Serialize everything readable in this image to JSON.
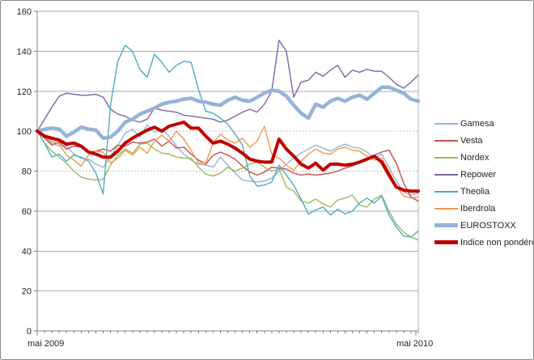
{
  "figure": {
    "background": "#FFFFFF",
    "border_color": "#8A8A8A",
    "text_color": "#1F1F1F",
    "grid_color": "#A9A9A9",
    "grid_color_light": "#C2C2C2",
    "axis_color": "#808080"
  },
  "chart_data": {
    "type": "line",
    "title": "",
    "subtitle": "",
    "x_axis": {
      "start_label": "mai 2009",
      "end_label": "mai 2010",
      "points": 53,
      "tick_interval": "weekly"
    },
    "y_axis": {
      "min": 0,
      "max": 160,
      "step": 20,
      "tick_labels": [
        "0",
        "20",
        "40",
        "60",
        "80",
        "100",
        "120",
        "140",
        "160"
      ]
    },
    "grid": true,
    "legend_position": "right",
    "series": [
      {
        "name": "Gamesa",
        "color": "#95B3D7",
        "width": 1.4,
        "values": [
          100,
          96.5,
          94,
          92.5,
          92.5,
          88.5,
          86.5,
          86,
          83.5,
          82,
          87,
          93,
          99,
          101,
          97,
          103,
          99.5,
          101,
          97.5,
          92.5,
          88.5,
          85.5,
          83.5,
          83,
          82,
          87,
          83,
          79,
          75.5,
          75,
          74.5,
          75,
          76.5,
          80,
          83.5,
          86.5,
          89,
          91,
          93,
          91.5,
          90,
          92,
          93.5,
          92,
          91.5,
          89.5,
          86.5,
          88.5,
          82,
          75,
          69.5,
          68,
          69
        ]
      },
      {
        "name": "Vesta",
        "color": "#C0504D",
        "width": 1.4,
        "values": [
          100,
          96.5,
          93,
          94.5,
          91,
          92.5,
          92,
          89.5,
          90,
          91,
          90,
          93,
          92.5,
          94.5,
          94,
          94.5,
          96,
          92.5,
          95,
          91.5,
          92,
          88.5,
          85.5,
          83.5,
          88,
          89.5,
          88,
          86,
          82.5,
          79.5,
          78,
          79.5,
          82,
          81.5,
          81,
          79,
          78,
          78.5,
          78,
          78.5,
          79,
          80,
          81.5,
          82.5,
          84.5,
          86.5,
          88,
          89.5,
          90.5,
          84,
          74,
          67,
          65
        ]
      },
      {
        "name": "Nordex",
        "color": "#9BBB59",
        "width": 1.4,
        "values": [
          100,
          94,
          90,
          87,
          84,
          80,
          77,
          76,
          75.5,
          76,
          83,
          88,
          91,
          89,
          93.5,
          94,
          91,
          89,
          88.5,
          87,
          86.5,
          86.5,
          82,
          78.5,
          77.5,
          79,
          82,
          80,
          81.5,
          83.5,
          84.5,
          82,
          80,
          81,
          72,
          70,
          65,
          64,
          66,
          63.5,
          62,
          65.5,
          66.5,
          68,
          63,
          62,
          66,
          68,
          60,
          53.5,
          49.5,
          47,
          45.5
        ]
      },
      {
        "name": "Repower",
        "color": "#8064A2",
        "width": 1.4,
        "values": [
          100,
          106,
          112,
          117.5,
          119,
          118.5,
          118,
          118,
          118.5,
          117,
          111,
          108.5,
          107.5,
          105.5,
          104.5,
          106,
          111.5,
          110.5,
          110,
          109.5,
          108,
          107.5,
          107,
          106.5,
          106,
          104.5,
          105.5,
          107.5,
          109.5,
          111,
          109.5,
          113.5,
          120,
          145.5,
          140,
          117,
          124.5,
          125.5,
          129.5,
          127.5,
          130.5,
          133,
          127,
          130.5,
          129.5,
          131,
          130,
          130,
          127,
          123.5,
          121.5,
          124.5,
          128
        ]
      },
      {
        "name": "Theolia",
        "color": "#4BACC6",
        "width": 1.4,
        "values": [
          100,
          94,
          87,
          88.5,
          85,
          88,
          87,
          85,
          79,
          68.5,
          113,
          135,
          143,
          140,
          131,
          127,
          138.5,
          134.5,
          129.5,
          133,
          135,
          134.5,
          121,
          110,
          109,
          106.5,
          103.5,
          98.5,
          93,
          77.5,
          72.5,
          73,
          74.5,
          83,
          78,
          73,
          66,
          58.5,
          60.5,
          62,
          58,
          61,
          58.5,
          60,
          64,
          66.5,
          64,
          67.5,
          58,
          52,
          47.5,
          47,
          50
        ]
      },
      {
        "name": "Iberdrola",
        "color": "#F79646",
        "width": 1.4,
        "values": [
          100,
          97,
          95,
          93.5,
          88,
          85.5,
          82.5,
          88,
          90,
          89.5,
          84,
          86.5,
          90.5,
          88,
          92,
          89,
          95,
          98,
          95,
          100,
          96,
          90.5,
          84,
          84,
          94,
          98.5,
          95.5,
          94,
          96.5,
          92,
          95,
          102.5,
          88.5,
          86.5,
          83,
          80.5,
          85,
          88.5,
          91,
          89,
          88.5,
          91,
          92,
          90.5,
          90,
          87.5,
          85.5,
          86.5,
          80,
          72.5,
          67.5,
          66.5,
          67
        ]
      },
      {
        "name": "EUROSTOXX",
        "color": "#95B3D7",
        "width": 4.5,
        "values": [
          100,
          101,
          101.5,
          101,
          97.5,
          99.5,
          102,
          101,
          100.5,
          96.5,
          97,
          100,
          104.5,
          106,
          108.5,
          110,
          111.5,
          113.5,
          114.5,
          115,
          116,
          116.5,
          115,
          114.5,
          113.5,
          113,
          115.5,
          117,
          115.5,
          115,
          117,
          119,
          120.5,
          120,
          117.5,
          113,
          109,
          106.5,
          113.5,
          112,
          115,
          116.5,
          115,
          117,
          118,
          116,
          119,
          122,
          122,
          120.5,
          119,
          116,
          115
        ]
      },
      {
        "name": "Indice non pondéré",
        "color": "#C00000",
        "width": 4,
        "values": [
          100,
          97.5,
          96.5,
          95.5,
          93.5,
          94,
          92.5,
          89.5,
          88.5,
          87,
          87,
          90,
          94,
          96.5,
          98.5,
          100.5,
          102,
          100,
          102.5,
          103.5,
          104.5,
          101.5,
          101.5,
          97.5,
          94,
          95,
          93.5,
          91.5,
          89,
          86,
          85,
          84.5,
          84.5,
          96,
          91,
          87.5,
          83.5,
          81.5,
          84,
          80.5,
          83.5,
          83.5,
          83,
          83.5,
          84.5,
          86,
          87.5,
          84.5,
          78,
          72,
          70.5,
          70,
          70
        ]
      }
    ]
  }
}
